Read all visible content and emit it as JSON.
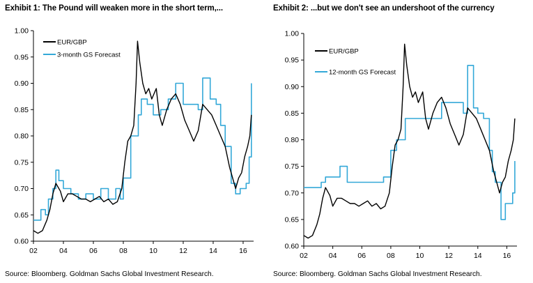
{
  "chart_data": [
    {
      "type": "line",
      "title": "Exhibit 1: The Pound will weaken more in the short term,...",
      "source": "Source: Bloomberg. Goldman Sachs Global Investment Research.",
      "xlabel": "",
      "ylabel": "",
      "xlim": [
        2002,
        2016.7
      ],
      "ylim": [
        0.6,
        1.0
      ],
      "x_ticks": [
        2,
        4,
        6,
        8,
        10,
        12,
        14,
        16
      ],
      "x_tick_labels": [
        "02",
        "04",
        "06",
        "08",
        "10",
        "12",
        "14",
        "16"
      ],
      "y_ticks": [
        0.6,
        0.65,
        0.7,
        0.75,
        0.8,
        0.85,
        0.9,
        0.95,
        1.0
      ],
      "y_tick_labels": [
        "0.60",
        "0.65",
        "0.70",
        "0.75",
        "0.80",
        "0.85",
        "0.90",
        "0.95",
        "1.00"
      ],
      "legend_position": "top-left",
      "series": [
        {
          "name": "EUR/GBP",
          "color": "#000000",
          "style": "line",
          "x": [
            2002.0,
            2002.3,
            2002.6,
            2002.9,
            2003.1,
            2003.3,
            2003.5,
            2003.8,
            2004.0,
            2004.3,
            2004.6,
            2004.9,
            2005.2,
            2005.5,
            2005.8,
            2006.1,
            2006.4,
            2006.7,
            2007.0,
            2007.3,
            2007.6,
            2007.9,
            2008.1,
            2008.3,
            2008.5,
            2008.7,
            2008.85,
            2008.95,
            2009.1,
            2009.3,
            2009.5,
            2009.7,
            2009.9,
            2010.2,
            2010.4,
            2010.6,
            2010.9,
            2011.2,
            2011.5,
            2011.8,
            2012.1,
            2012.4,
            2012.7,
            2013.0,
            2013.3,
            2013.6,
            2013.9,
            2014.2,
            2014.5,
            2014.8,
            2015.1,
            2015.3,
            2015.5,
            2015.7,
            2015.9,
            2016.1,
            2016.3,
            2016.45,
            2016.55
          ],
          "y": [
            0.62,
            0.615,
            0.62,
            0.64,
            0.66,
            0.69,
            0.71,
            0.695,
            0.675,
            0.69,
            0.69,
            0.685,
            0.68,
            0.68,
            0.675,
            0.68,
            0.685,
            0.675,
            0.68,
            0.67,
            0.675,
            0.7,
            0.75,
            0.79,
            0.8,
            0.82,
            0.9,
            0.98,
            0.94,
            0.9,
            0.88,
            0.89,
            0.87,
            0.89,
            0.84,
            0.82,
            0.85,
            0.87,
            0.88,
            0.86,
            0.83,
            0.81,
            0.79,
            0.81,
            0.86,
            0.85,
            0.84,
            0.82,
            0.8,
            0.78,
            0.74,
            0.72,
            0.7,
            0.72,
            0.73,
            0.76,
            0.78,
            0.8,
            0.84
          ]
        },
        {
          "name": "3-month GS Forecast",
          "color": "#33a8d8",
          "style": "step",
          "x": [
            2002.0,
            2002.5,
            2002.8,
            2003.0,
            2003.3,
            2003.5,
            2003.7,
            2004.0,
            2004.5,
            2005.0,
            2005.5,
            2006.0,
            2006.5,
            2007.0,
            2007.5,
            2007.8,
            2008.0,
            2008.5,
            2009.0,
            2009.2,
            2009.6,
            2010.0,
            2010.5,
            2011.0,
            2011.5,
            2012.0,
            2012.5,
            2013.0,
            2013.3,
            2013.8,
            2014.2,
            2014.5,
            2014.8,
            2015.2,
            2015.5,
            2015.8,
            2016.2,
            2016.4,
            2016.55
          ],
          "y": [
            0.64,
            0.66,
            0.65,
            0.68,
            0.7,
            0.735,
            0.715,
            0.7,
            0.69,
            0.68,
            0.69,
            0.68,
            0.7,
            0.68,
            0.7,
            0.68,
            0.72,
            0.8,
            0.84,
            0.87,
            0.86,
            0.84,
            0.85,
            0.87,
            0.9,
            0.86,
            0.86,
            0.85,
            0.91,
            0.87,
            0.86,
            0.82,
            0.78,
            0.71,
            0.69,
            0.7,
            0.71,
            0.76,
            0.9
          ]
        }
      ]
    },
    {
      "type": "line",
      "title": "Exhibit 2: ...but we don't see an undershoot of the currency",
      "source": "Source: Bloomberg. Goldman Sachs Global Investment Research.",
      "xlabel": "",
      "ylabel": "",
      "xlim": [
        2002,
        2016.7
      ],
      "ylim": [
        0.6,
        1.0
      ],
      "x_ticks": [
        2,
        4,
        6,
        8,
        10,
        12,
        14,
        16
      ],
      "x_tick_labels": [
        "02",
        "04",
        "06",
        "08",
        "10",
        "12",
        "14",
        "16"
      ],
      "y_ticks": [
        0.6,
        0.65,
        0.7,
        0.75,
        0.8,
        0.85,
        0.9,
        0.95,
        1.0
      ],
      "y_tick_labels": [
        "0.60",
        "0.65",
        "0.70",
        "0.75",
        "0.80",
        "0.85",
        "0.90",
        "0.95",
        "1.00"
      ],
      "legend_position": "top-left",
      "series": [
        {
          "name": "EUR/GBP",
          "color": "#000000",
          "style": "line",
          "x": [
            2002.0,
            2002.3,
            2002.6,
            2002.9,
            2003.1,
            2003.3,
            2003.5,
            2003.8,
            2004.0,
            2004.3,
            2004.6,
            2004.9,
            2005.2,
            2005.5,
            2005.8,
            2006.1,
            2006.4,
            2006.7,
            2007.0,
            2007.3,
            2007.6,
            2007.9,
            2008.1,
            2008.3,
            2008.5,
            2008.7,
            2008.85,
            2008.95,
            2009.1,
            2009.3,
            2009.5,
            2009.7,
            2009.9,
            2010.2,
            2010.4,
            2010.6,
            2010.9,
            2011.2,
            2011.5,
            2011.8,
            2012.1,
            2012.4,
            2012.7,
            2013.0,
            2013.3,
            2013.6,
            2013.9,
            2014.2,
            2014.5,
            2014.8,
            2015.1,
            2015.3,
            2015.5,
            2015.7,
            2015.9,
            2016.1,
            2016.3,
            2016.45,
            2016.55
          ],
          "y": [
            0.62,
            0.615,
            0.62,
            0.64,
            0.66,
            0.69,
            0.71,
            0.695,
            0.675,
            0.69,
            0.69,
            0.685,
            0.68,
            0.68,
            0.675,
            0.68,
            0.685,
            0.675,
            0.68,
            0.67,
            0.675,
            0.7,
            0.75,
            0.79,
            0.8,
            0.82,
            0.9,
            0.98,
            0.94,
            0.9,
            0.88,
            0.89,
            0.87,
            0.89,
            0.84,
            0.82,
            0.85,
            0.87,
            0.88,
            0.86,
            0.83,
            0.81,
            0.79,
            0.81,
            0.86,
            0.85,
            0.84,
            0.82,
            0.8,
            0.78,
            0.74,
            0.72,
            0.7,
            0.72,
            0.73,
            0.76,
            0.78,
            0.8,
            0.84
          ]
        },
        {
          "name": "12-month GS Forecast",
          "color": "#33a8d8",
          "style": "step",
          "x": [
            2002.0,
            2003.2,
            2003.5,
            2004.5,
            2005.0,
            2006.5,
            2007.5,
            2008.0,
            2008.4,
            2009.0,
            2010.5,
            2011.5,
            2013.0,
            2013.3,
            2013.7,
            2014.0,
            2014.4,
            2014.8,
            2015.0,
            2015.2,
            2015.6,
            2015.9,
            2016.4,
            2016.55
          ],
          "y": [
            0.71,
            0.72,
            0.73,
            0.75,
            0.72,
            0.72,
            0.73,
            0.78,
            0.8,
            0.84,
            0.84,
            0.87,
            0.85,
            0.94,
            0.86,
            0.85,
            0.84,
            0.78,
            0.74,
            0.72,
            0.65,
            0.68,
            0.7,
            0.76
          ]
        }
      ]
    }
  ]
}
